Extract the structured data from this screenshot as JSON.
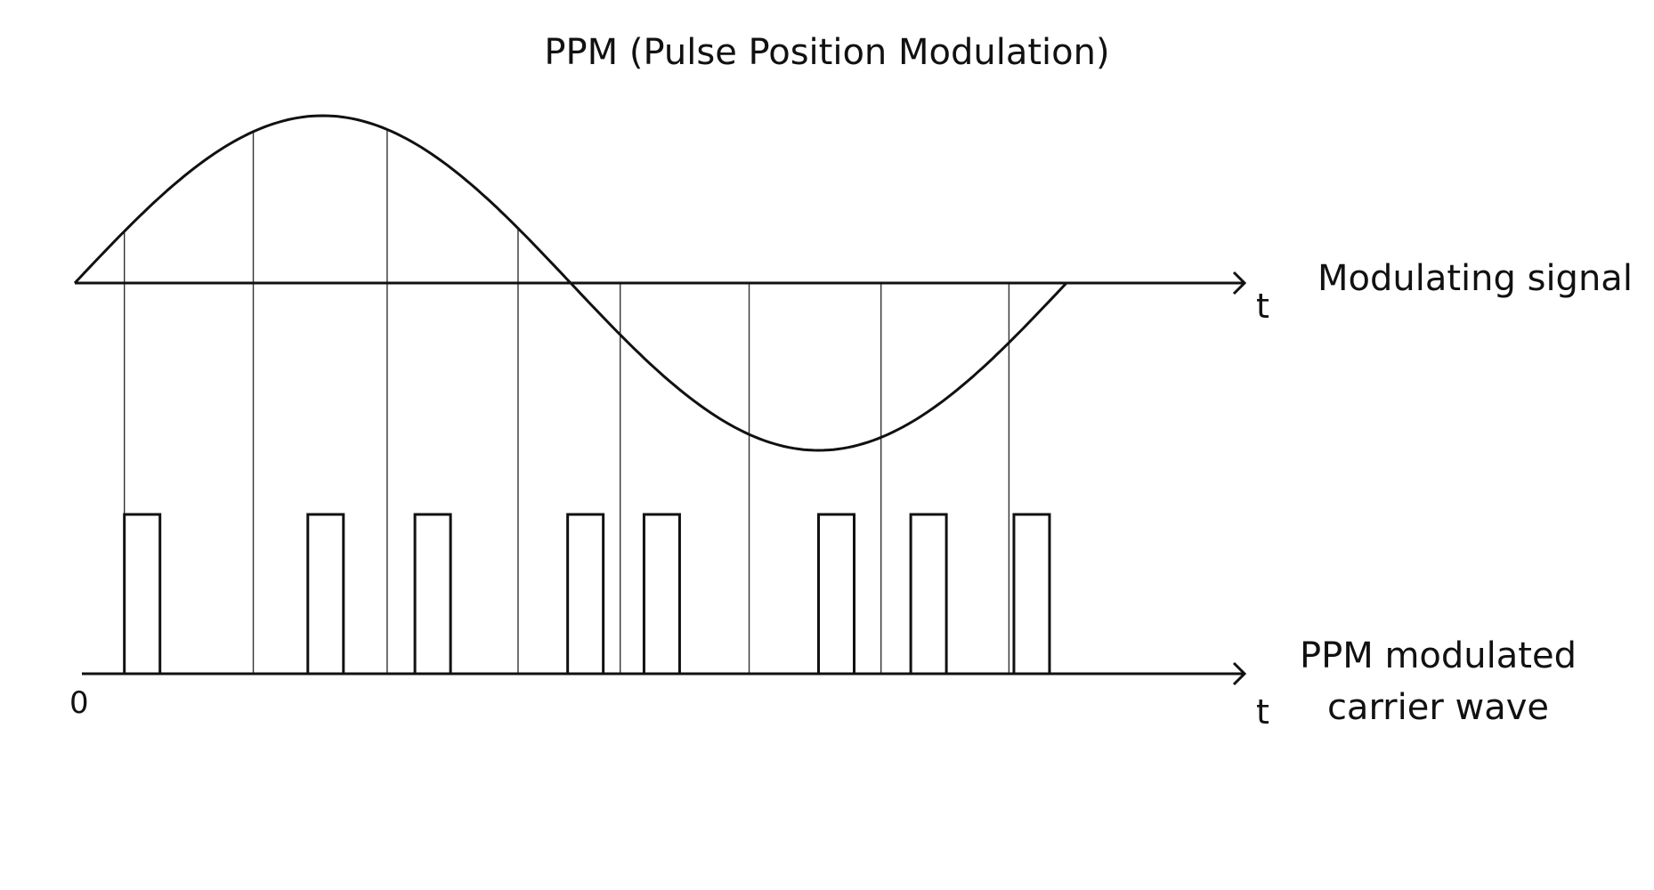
{
  "title": "PPM (Pulse Position Modulation)",
  "signal_panel": {
    "label": "Modulating signal",
    "axis_label": "t"
  },
  "carrier_panel": {
    "label_line1": "PPM modulated",
    "label_line2": "carrier wave",
    "axis_label": "t",
    "origin_label": "0"
  },
  "modulating_signal": {
    "shape": "sine",
    "cycles": 1,
    "start_t": 0,
    "end_t": 1
  },
  "sample_times": [
    0.05,
    0.18,
    0.315,
    0.447,
    0.55,
    0.68,
    0.813,
    0.942
  ],
  "pulse_offsets": [
    0,
    0.055,
    0.028,
    0.05,
    0.024,
    0.07,
    0.03,
    0.005
  ],
  "colors": {
    "line": "#111111",
    "guide": "#333333",
    "background": "#ffffff"
  }
}
